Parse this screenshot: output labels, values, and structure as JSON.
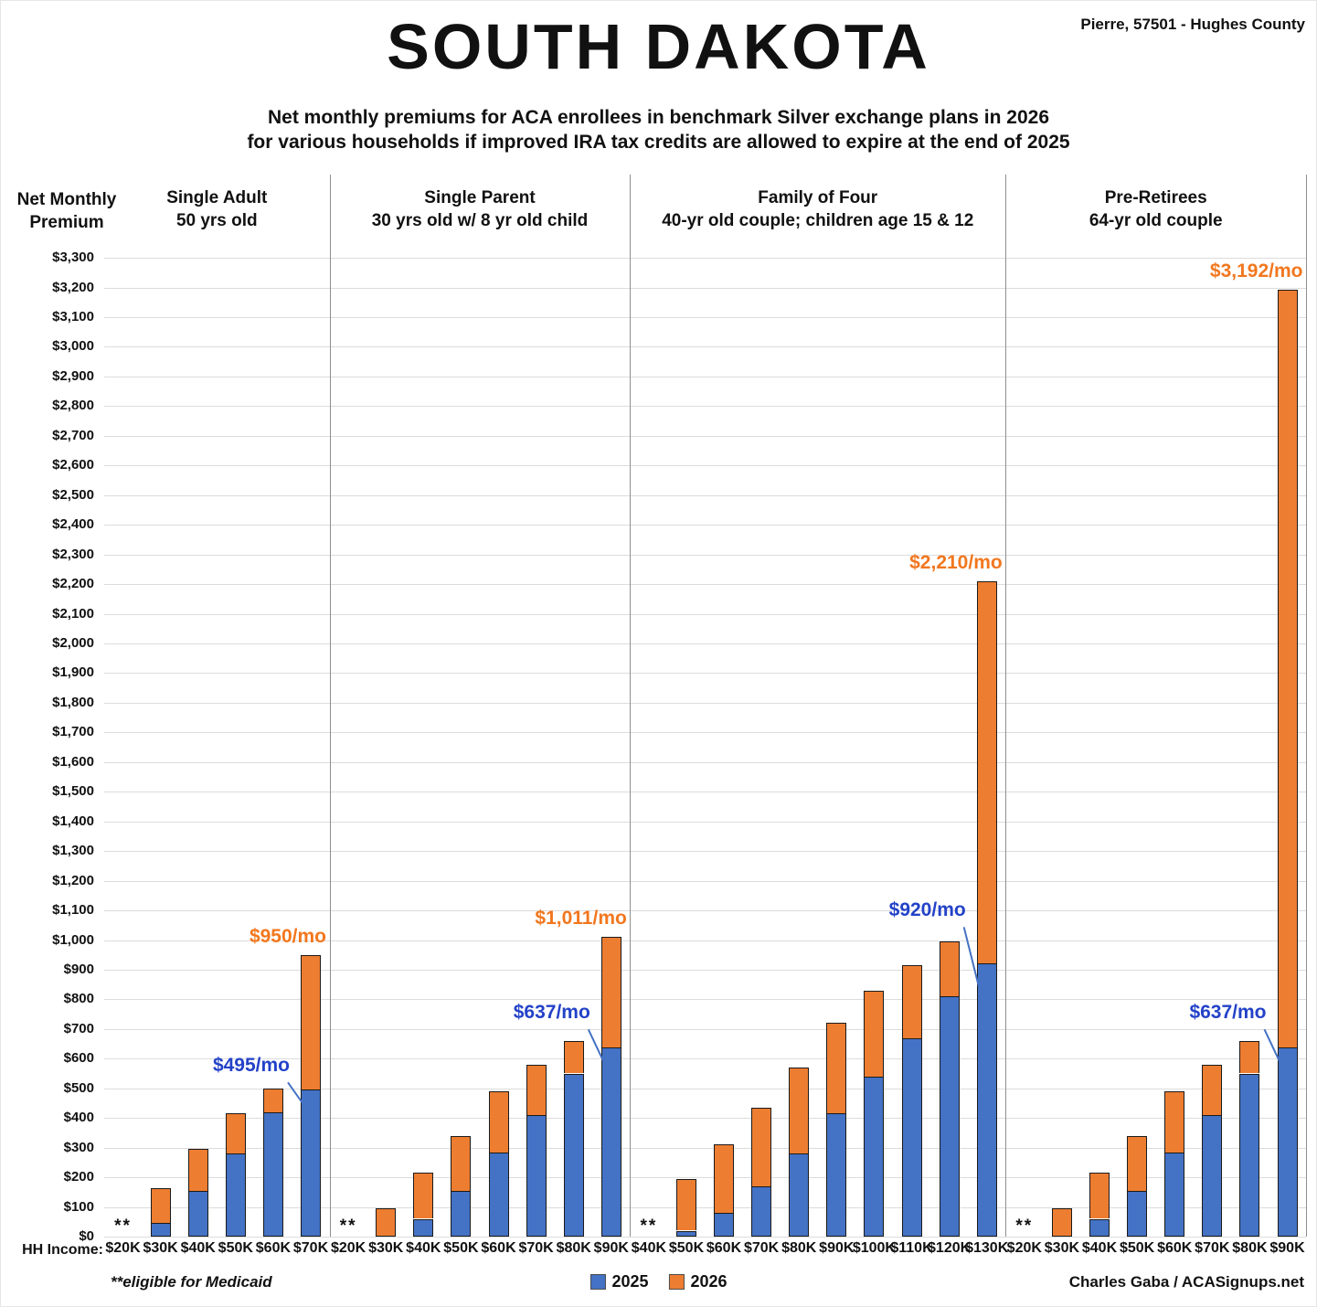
{
  "header": {
    "location": "Pierre, 57501 - Hughes County",
    "title": "SOUTH DAKOTA",
    "subtitle_line1": "Net monthly premiums for ACA enrollees in benchmark Silver exchange plans in 2026",
    "subtitle_line2": "for various households if improved IRA tax credits are allowed to expire at the end of 2025"
  },
  "y_axis": {
    "label_line1": "Net Monthly",
    "label_line2": "Premium",
    "min": 0,
    "max": 3300,
    "step": 100,
    "tick_prefix": "$"
  },
  "x_axis": {
    "label": "HH Income:"
  },
  "legend": {
    "items": [
      {
        "label": "2025",
        "color": "#4472C4"
      },
      {
        "label": "2026",
        "color": "#ED7D31"
      }
    ]
  },
  "footnote": "**eligible for Medicaid",
  "credit": "Charles Gaba / ACASignups.net",
  "colors": {
    "bar_2025": "#4472C4",
    "bar_2026": "#ED7D31",
    "bar_border": "#1b1b1b",
    "label_2025": "#2342C8",
    "label_2026": "#F2771E",
    "callout_line": "#4472C4",
    "gridline": "#dcdcdc",
    "separator": "#8f8f8f"
  },
  "chart_data": {
    "type": "bar",
    "stacked": true,
    "grid": true,
    "ylim": [
      0,
      3300
    ],
    "y_step": 100,
    "legend_position": "bottom-center",
    "series_names": [
      "2025",
      "2026"
    ],
    "medicaid_marker": "**",
    "panels": [
      {
        "title_line1": "Single Adult",
        "title_line2": "50 yrs old",
        "categories": [
          "$20K",
          "$30K",
          "$40K",
          "$50K",
          "$60K",
          "$70K"
        ],
        "series": [
          {
            "name": "2025",
            "values": [
              null,
              45,
              155,
              280,
              420,
              495
            ]
          },
          {
            "name": "2026",
            "values": [
              null,
              165,
              295,
              415,
              500,
              950
            ]
          }
        ],
        "annotations": [
          {
            "type": "total",
            "bar": 5,
            "text": "$950/mo"
          },
          {
            "type": "callout",
            "bar": 5,
            "text": "$495/mo",
            "label_gap": 12,
            "drop": 16
          }
        ]
      },
      {
        "title_line1": "Single Parent",
        "title_line2": "30 yrs old w/ 8 yr old child",
        "categories": [
          "$20K",
          "$30K",
          "$40K",
          "$50K",
          "$60K",
          "$70K",
          "$80K",
          "$90K"
        ],
        "series": [
          {
            "name": "2025",
            "values": [
              null,
              0,
              60,
              155,
              285,
              410,
              550,
              637
            ]
          },
          {
            "name": "2026",
            "values": [
              null,
              95,
              215,
              340,
              490,
              580,
              660,
              1011
            ]
          }
        ],
        "annotations": [
          {
            "type": "total",
            "bar": 7,
            "text": "$1,011/mo"
          },
          {
            "type": "callout",
            "bar": 7,
            "text": "$637/mo",
            "label_gap": 24,
            "drop": 16
          }
        ]
      },
      {
        "title_line1": "Family of Four",
        "title_line2": "40-yr old couple; children age 15 & 12",
        "categories": [
          "$40K",
          "$50K",
          "$60K",
          "$70K",
          "$80K",
          "$90K",
          "$100K",
          "$110K",
          "$120K",
          "$130K"
        ],
        "series": [
          {
            "name": "2025",
            "values": [
              null,
              20,
              80,
              170,
              280,
              415,
              540,
              670,
              810,
              920
            ]
          },
          {
            "name": "2026",
            "values": [
              null,
              195,
              310,
              435,
              570,
              720,
              830,
              915,
              995,
              2210
            ]
          }
        ],
        "annotations": [
          {
            "type": "total",
            "bar": 9,
            "text": "$2,210/mo"
          },
          {
            "type": "callout",
            "bar": 9,
            "text": "$920/mo",
            "label_gap": 44,
            "drop": 28
          }
        ]
      },
      {
        "title_line1": "Pre-Retirees",
        "title_line2": "64-yr old couple",
        "categories": [
          "$20K",
          "$30K",
          "$40K",
          "$50K",
          "$60K",
          "$70K",
          "$80K",
          "$90K"
        ],
        "series": [
          {
            "name": "2025",
            "values": [
              null,
              0,
              60,
              155,
              285,
              410,
              550,
              637
            ]
          },
          {
            "name": "2026",
            "values": [
              null,
              95,
              215,
              340,
              490,
              580,
              660,
              3192
            ]
          }
        ],
        "annotations": [
          {
            "type": "total",
            "bar": 7,
            "text": "$3,192/mo"
          },
          {
            "type": "callout",
            "bar": 7,
            "text": "$637/mo",
            "label_gap": 24,
            "drop": 16
          }
        ]
      }
    ]
  }
}
